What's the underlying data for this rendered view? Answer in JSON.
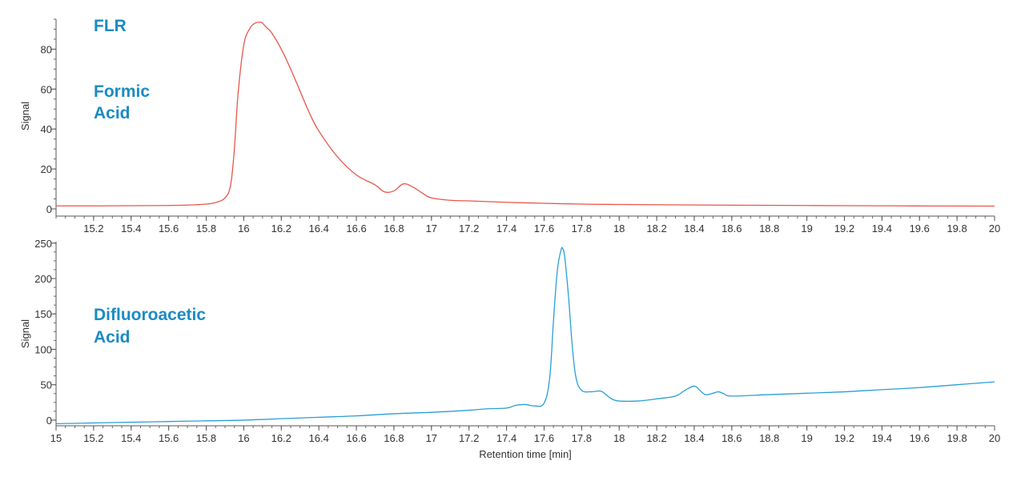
{
  "chart_data": [
    {
      "type": "line",
      "ylabel": "Signal",
      "xlim": [
        15,
        20
      ],
      "ylim": [
        -2,
        95
      ],
      "yticks": [
        0,
        20,
        40,
        60,
        80
      ],
      "xticks": [
        15.2,
        15.4,
        15.6,
        15.8,
        16,
        16.2,
        16.4,
        16.6,
        16.8,
        17,
        17.2,
        17.4,
        17.6,
        17.8,
        18,
        18.2,
        18.4,
        18.6,
        18.8,
        19,
        19.2,
        19.4,
        19.6,
        19.8,
        20
      ],
      "xtick_labels": [
        "15.2",
        "15.4",
        "15.6",
        "15.8",
        "16",
        "16.2",
        "16.4",
        "16.6",
        "16.8",
        "17",
        "17.2",
        "17.4",
        "17.6",
        "17.8",
        "18",
        "18.2",
        "18.4",
        "18.6",
        "18.8",
        "19",
        "19.2",
        "19.4",
        "19.6",
        "19.8",
        "20"
      ],
      "annotations": [
        "FLR",
        "Formic",
        "Acid"
      ],
      "series": [
        {
          "color": "#e8564a",
          "x": [
            15.0,
            15.2,
            15.4,
            15.6,
            15.7,
            15.8,
            15.85,
            15.9,
            15.93,
            15.95,
            15.97,
            16.0,
            16.03,
            16.06,
            16.09,
            16.1,
            16.12,
            16.15,
            16.2,
            16.25,
            16.3,
            16.35,
            16.4,
            16.5,
            16.6,
            16.7,
            16.75,
            16.8,
            16.85,
            16.9,
            16.95,
            17.0,
            17.1,
            17.2,
            17.4,
            17.6,
            17.8,
            18.0,
            18.5,
            19.0,
            19.5,
            20.0
          ],
          "y": [
            1.5,
            1.5,
            1.6,
            1.7,
            1.9,
            2.4,
            3.2,
            5.5,
            12,
            30,
            58,
            82,
            90,
            93,
            93.5,
            93,
            91,
            88,
            80,
            70,
            59,
            48,
            39,
            26,
            17,
            12,
            8.5,
            9,
            12.5,
            11,
            8,
            5.5,
            4.3,
            4,
            3.3,
            2.8,
            2.4,
            2.2,
            1.9,
            1.7,
            1.5,
            1.4
          ]
        }
      ]
    },
    {
      "type": "line",
      "xlabel": "Retention time [min]",
      "ylabel": "Signal",
      "xlim": [
        15,
        20
      ],
      "ylim": [
        -8,
        252
      ],
      "yticks": [
        0,
        50,
        100,
        150,
        200,
        250
      ],
      "xticks": [
        15,
        15.2,
        15.4,
        15.6,
        15.8,
        16,
        16.2,
        16.4,
        16.6,
        16.8,
        17,
        17.2,
        17.4,
        17.6,
        17.8,
        18,
        18.2,
        18.4,
        18.6,
        18.8,
        19,
        19.2,
        19.4,
        19.6,
        19.8,
        20
      ],
      "xtick_labels": [
        "15",
        "15.2",
        "15.4",
        "15.6",
        "15.8",
        "16",
        "16.2",
        "16.4",
        "16.6",
        "16.8",
        "17",
        "17.2",
        "17.4",
        "17.6",
        "17.8",
        "18",
        "18.2",
        "18.4",
        "18.6",
        "18.8",
        "19",
        "19.2",
        "19.4",
        "19.6",
        "19.8",
        "20"
      ],
      "annotations": [
        "Difluoroacetic",
        "Acid"
      ],
      "series": [
        {
          "color": "#2a9fd6",
          "x": [
            15.0,
            15.2,
            15.4,
            15.6,
            15.8,
            16.0,
            16.2,
            16.4,
            16.6,
            16.8,
            17.0,
            17.2,
            17.3,
            17.4,
            17.45,
            17.5,
            17.55,
            17.6,
            17.63,
            17.65,
            17.67,
            17.69,
            17.7,
            17.71,
            17.73,
            17.75,
            17.77,
            17.8,
            17.85,
            17.9,
            17.93,
            17.96,
            18.0,
            18.1,
            18.2,
            18.3,
            18.35,
            18.4,
            18.43,
            18.46,
            18.5,
            18.53,
            18.56,
            18.6,
            18.8,
            19.0,
            19.2,
            19.4,
            19.6,
            19.8,
            20.0
          ],
          "y": [
            -5,
            -4,
            -3,
            -2,
            -1,
            0,
            2,
            4,
            6,
            9,
            11,
            14,
            16,
            17,
            21,
            22,
            20,
            24,
            60,
            140,
            210,
            240,
            242,
            230,
            175,
            105,
            60,
            42,
            40,
            41,
            36,
            30,
            27,
            27,
            30,
            34,
            42,
            48,
            42,
            36,
            38,
            40,
            37,
            34,
            36,
            38,
            40,
            43,
            46,
            50,
            54
          ]
        }
      ]
    }
  ]
}
